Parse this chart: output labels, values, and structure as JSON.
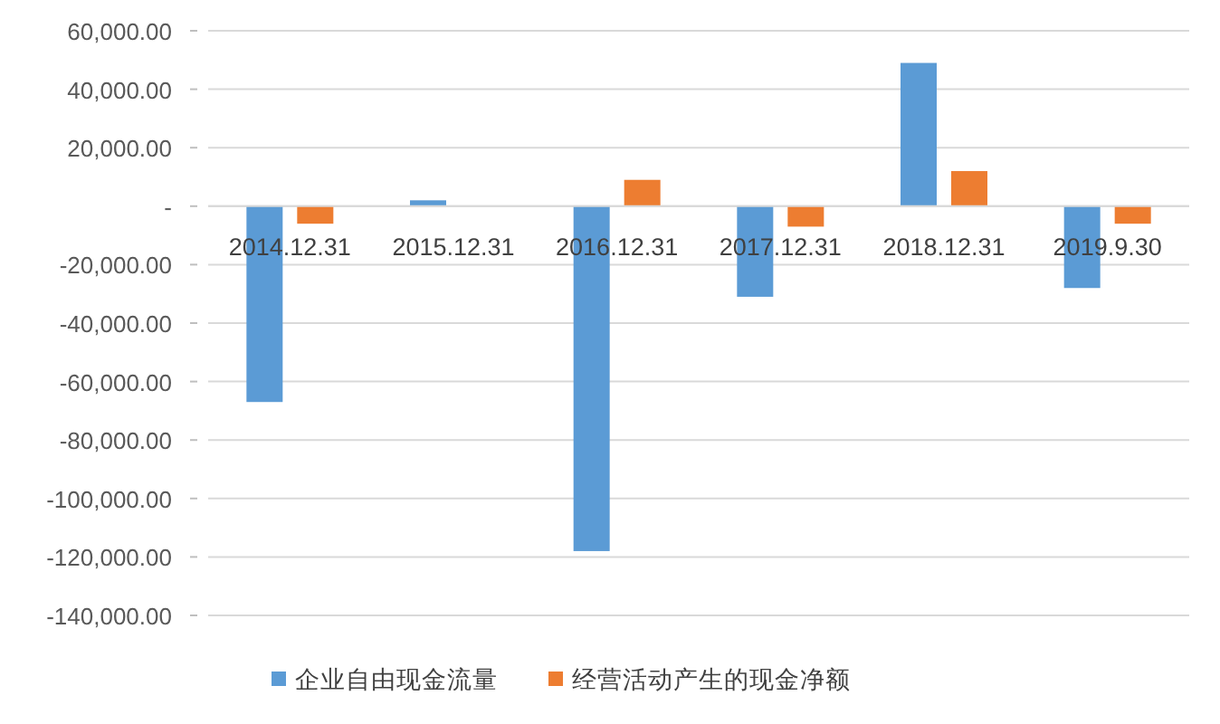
{
  "chart_data": {
    "type": "bar",
    "categories": [
      "2014.12.31",
      "2015.12.31",
      "2016.12.31",
      "2017.12.31",
      "2018.12.31",
      "2019.9.30"
    ],
    "series": [
      {
        "name": "企业自由现金流量",
        "color": "#5b9bd5",
        "values": [
          -67000,
          2000,
          -118000,
          -31000,
          49000,
          -28000
        ]
      },
      {
        "name": "经营活动产生的现金净额",
        "color": "#ed7d31",
        "values": [
          -6000,
          null,
          9000,
          -7000,
          12000,
          -6000
        ]
      }
    ],
    "ylim": [
      -140000,
      60000
    ],
    "yticks": [
      {
        "value": -140000,
        "label": "-140,000.00"
      },
      {
        "value": -120000,
        "label": "-120,000.00"
      },
      {
        "value": -100000,
        "label": "-100,000.00"
      },
      {
        "value": -80000,
        "label": "-80,000.00"
      },
      {
        "value": -60000,
        "label": "-60,000.00"
      },
      {
        "value": -40000,
        "label": "-40,000.00"
      },
      {
        "value": -20000,
        "label": "-20,000.00"
      },
      {
        "value": 0,
        "label": "-"
      },
      {
        "value": 20000,
        "label": "20,000.00"
      },
      {
        "value": 40000,
        "label": "40,000.00"
      },
      {
        "value": 60000,
        "label": "60,000.00"
      }
    ],
    "grid": "y",
    "legend": "bottom"
  }
}
